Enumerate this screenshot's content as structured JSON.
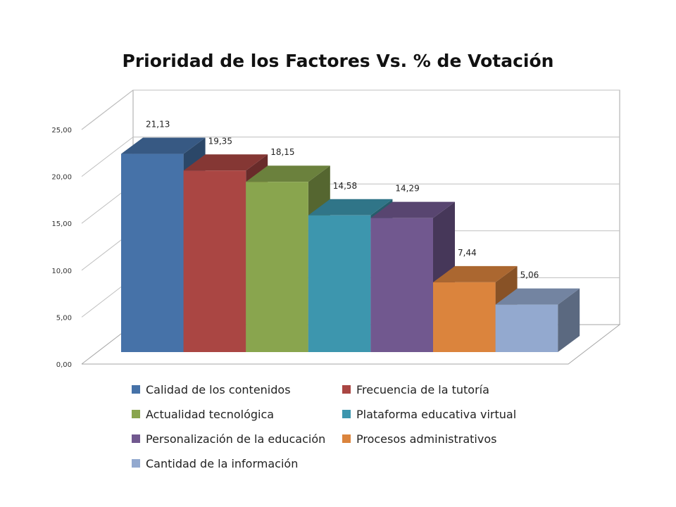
{
  "chart_data": {
    "type": "bar",
    "title": "Prioridad de los Factores Vs. % de Votación",
    "xlabel": "",
    "ylabel": "",
    "ylim": [
      0,
      25
    ],
    "yticks": [
      "0,00",
      "5,00",
      "10,00",
      "15,00",
      "20,00",
      "25,00"
    ],
    "grid": true,
    "legend_position": "bottom",
    "series": [
      {
        "name": "Calidad de los contenidos",
        "value": 21.13,
        "label": "21,13",
        "color": "#4672A8"
      },
      {
        "name": "Frecuencia de la tutoría",
        "value": 19.35,
        "label": "19,35",
        "color": "#AA4643"
      },
      {
        "name": "Actualidad tecnológica",
        "value": 18.15,
        "label": "18,15",
        "color": "#89A54E"
      },
      {
        "name": "Plataforma educativa virtual",
        "value": 14.58,
        "label": "14,58",
        "color": "#3D96AE"
      },
      {
        "name": "Personalización de la educación",
        "value": 14.29,
        "label": "14,29",
        "color": "#71588F"
      },
      {
        "name": "Procesos administrativos",
        "value": 7.44,
        "label": "7,44",
        "color": "#DB843D"
      },
      {
        "name": "Cantidad de la información",
        "value": 5.06,
        "label": "5,06",
        "color": "#93A9CF"
      }
    ]
  }
}
